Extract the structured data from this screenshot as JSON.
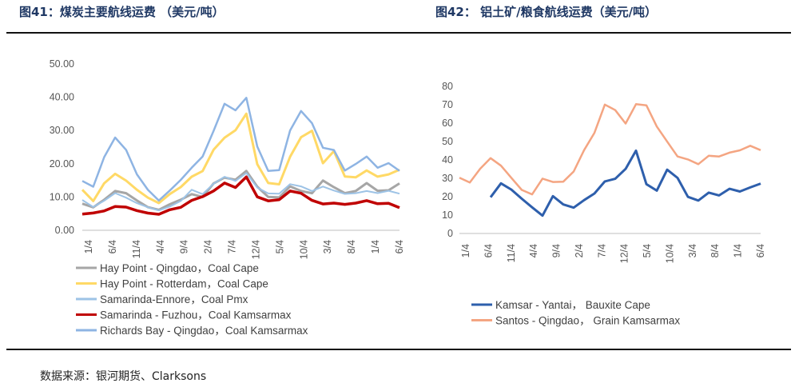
{
  "titles": {
    "left": "图41：煤炭主要航线运费  （美元/吨）",
    "right": "图42：  铝土矿/粮食航线运费（美元/吨）"
  },
  "source": "数据来源：银河期货、Clarksons",
  "chart_data": [
    {
      "type": "line",
      "x_ticks": [
        "1/4",
        "6/4",
        "11/4",
        "4/4",
        "9/4",
        "2/4",
        "7/4",
        "12/4",
        "5/4",
        "10/4",
        "3/4",
        "8/4",
        "1/4",
        "6/4"
      ],
      "ylim": [
        0,
        50
      ],
      "y_ticks": [
        "0.00",
        "10.00",
        "20.00",
        "30.00",
        "40.00",
        "50.00"
      ],
      "colors": {
        "s0": "#a6a6a6",
        "s1": "#ffd966",
        "s2": "#9dc3e6",
        "s3": "#c00000",
        "s4": "#8eb4e3"
      },
      "series": [
        {
          "name": "Hay Point - Qingdao，Coal Cape",
          "values": [
            8,
            7,
            9,
            12,
            11,
            9,
            7,
            6,
            8,
            9,
            11,
            10,
            14,
            16,
            15,
            18,
            13,
            10,
            10,
            13,
            12,
            11,
            15,
            13,
            11,
            12,
            14,
            12,
            12,
            14
          ]
        },
        {
          "name": "Hay Point - Rotterdam，Coal Cape",
          "values": [
            12,
            9,
            14,
            17,
            15,
            12,
            10,
            8,
            11,
            13,
            16,
            18,
            24,
            28,
            30,
            35,
            20,
            14,
            14,
            22,
            28,
            30,
            20,
            24,
            16,
            16,
            18,
            16,
            17,
            18
          ]
        },
        {
          "name": "Samarinda-Ennore，Coal Pmx",
          "values": [
            9,
            7,
            9,
            11,
            10,
            8,
            7,
            6,
            7,
            9,
            12,
            11,
            14,
            16,
            15,
            17,
            13,
            11,
            11,
            14,
            13,
            12,
            13,
            12,
            11,
            11,
            12,
            11,
            12,
            11
          ]
        },
        {
          "name": "Samarinda - Fuzhou，Coal Kamsarmax",
          "values": [
            5,
            5,
            6,
            7,
            7,
            6,
            5,
            5,
            6,
            7,
            9,
            10,
            12,
            14,
            13,
            16,
            10,
            9,
            9,
            12,
            11,
            9,
            8,
            8,
            8,
            8,
            9,
            8,
            8,
            7
          ]
        },
        {
          "name": "Richards Bay - Qingdao，Coal Kamsarmax",
          "values": [
            15,
            13,
            22,
            28,
            24,
            17,
            12,
            9,
            12,
            15,
            19,
            22,
            30,
            38,
            36,
            40,
            25,
            18,
            18,
            30,
            36,
            32,
            25,
            24,
            18,
            20,
            22,
            19,
            20,
            18
          ]
        }
      ]
    },
    {
      "type": "line",
      "x_ticks": [
        "1/4",
        "6/4",
        "11/4",
        "4/4",
        "9/4",
        "2/4",
        "7/4",
        "12/4",
        "5/4",
        "10/4",
        "3/4",
        "8/4",
        "1/4",
        "6/4"
      ],
      "ylim": [
        0,
        80
      ],
      "y_ticks": [
        "0",
        "10",
        "20",
        "30",
        "40",
        "50",
        "60",
        "70",
        "80"
      ],
      "colors": {
        "s0": "#2e5fac",
        "s1": "#f4a582"
      },
      "series": [
        {
          "name": "Kamsar - Yantai，  Bauxite Cape",
          "values": [
            null,
            null,
            null,
            20,
            27,
            24,
            19,
            14,
            10,
            20,
            16,
            14,
            18,
            22,
            28,
            30,
            35,
            45,
            27,
            23,
            35,
            30,
            20,
            18,
            22,
            21,
            24,
            23,
            25,
            27
          ]
        },
        {
          "name": "Santos - Qingdao，  Grain Kamsarmax",
          "values": [
            30,
            28,
            35,
            41,
            37,
            30,
            24,
            21,
            30,
            28,
            28,
            34,
            45,
            55,
            70,
            67,
            60,
            70,
            70,
            58,
            50,
            42,
            40,
            38,
            42,
            42,
            44,
            45,
            48,
            45
          ]
        }
      ]
    }
  ]
}
